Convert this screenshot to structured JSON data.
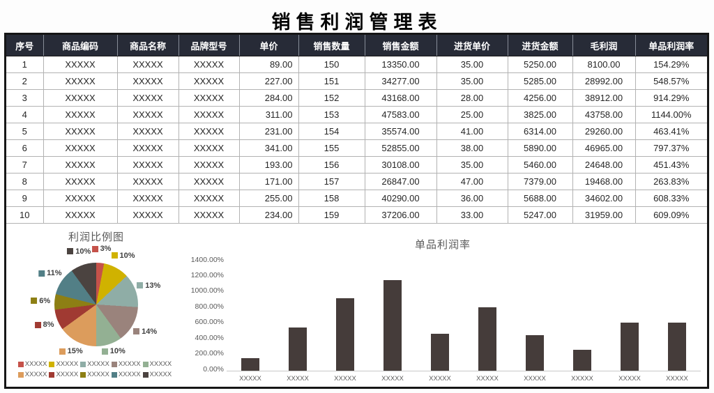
{
  "page": {
    "title": "销售利润管理表"
  },
  "table": {
    "columns": [
      "序号",
      "商品编码",
      "商品名称",
      "品牌型号",
      "单价",
      "销售数量",
      "销售金额",
      "进货单价",
      "进货金额",
      "毛利润",
      "单品利润率"
    ],
    "rows": [
      [
        "1",
        "XXXXX",
        "XXXXX",
        "XXXXX",
        "89.00",
        "150",
        "13350.00",
        "35.00",
        "5250.00",
        "8100.00",
        "154.29%"
      ],
      [
        "2",
        "XXXXX",
        "XXXXX",
        "XXXXX",
        "227.00",
        "151",
        "34277.00",
        "35.00",
        "5285.00",
        "28992.00",
        "548.57%"
      ],
      [
        "3",
        "XXXXX",
        "XXXXX",
        "XXXXX",
        "284.00",
        "152",
        "43168.00",
        "28.00",
        "4256.00",
        "38912.00",
        "914.29%"
      ],
      [
        "4",
        "XXXXX",
        "XXXXX",
        "XXXXX",
        "311.00",
        "153",
        "47583.00",
        "25.00",
        "3825.00",
        "43758.00",
        "1144.00%"
      ],
      [
        "5",
        "XXXXX",
        "XXXXX",
        "XXXXX",
        "231.00",
        "154",
        "35574.00",
        "41.00",
        "6314.00",
        "29260.00",
        "463.41%"
      ],
      [
        "6",
        "XXXXX",
        "XXXXX",
        "XXXXX",
        "341.00",
        "155",
        "52855.00",
        "38.00",
        "5890.00",
        "46965.00",
        "797.37%"
      ],
      [
        "7",
        "XXXXX",
        "XXXXX",
        "XXXXX",
        "193.00",
        "156",
        "30108.00",
        "35.00",
        "5460.00",
        "24648.00",
        "451.43%"
      ],
      [
        "8",
        "XXXXX",
        "XXXXX",
        "XXXXX",
        "171.00",
        "157",
        "26847.00",
        "47.00",
        "7379.00",
        "19468.00",
        "263.83%"
      ],
      [
        "9",
        "XXXXX",
        "XXXXX",
        "XXXXX",
        "255.00",
        "158",
        "40290.00",
        "36.00",
        "5688.00",
        "34602.00",
        "608.33%"
      ],
      [
        "10",
        "XXXXX",
        "XXXXX",
        "XXXXX",
        "234.00",
        "159",
        "37206.00",
        "33.00",
        "5247.00",
        "31959.00",
        "609.09%"
      ]
    ]
  },
  "chart_data": [
    {
      "type": "pie",
      "title": "利润比例图",
      "labels": [
        "3%",
        "10%",
        "13%",
        "14%",
        "10%",
        "15%",
        "8%",
        "6%",
        "11%",
        "10%"
      ],
      "values": [
        3,
        10,
        13,
        14,
        10,
        15,
        8,
        6,
        11,
        10
      ],
      "colors": [
        "#c5524a",
        "#d0b200",
        "#8fada6",
        "#9a837c",
        "#93b093",
        "#dc9c5c",
        "#a03a32",
        "#8d7f14",
        "#527f86",
        "#4b4340"
      ],
      "legend_entries": [
        "XXXXX",
        "XXXXX",
        "XXXXX",
        "XXXXX",
        "XXXXX",
        "XXXXX",
        "XXXXX",
        "XXXXX",
        "XXXXX",
        "XXXXX"
      ],
      "legend_position": "bottom"
    },
    {
      "type": "bar",
      "title": "单品利润率",
      "categories": [
        "XXXXX",
        "XXXXX",
        "XXXXX",
        "XXXXX",
        "XXXXX",
        "XXXXX",
        "XXXXX",
        "XXXXX",
        "XXXXX",
        "XXXXX"
      ],
      "values": [
        154.29,
        548.57,
        914.29,
        1144.0,
        463.41,
        797.37,
        451.43,
        263.83,
        608.33,
        609.09
      ],
      "ylim": [
        0,
        1400
      ],
      "y_tick_labels": [
        "1400.00%",
        "1200.00%",
        "1000.00%",
        "800.00%",
        "600.00%",
        "400.00%",
        "200.00%",
        "0.00%"
      ],
      "bar_color": "#453c3a",
      "grid": false,
      "legend_position": "none"
    }
  ]
}
